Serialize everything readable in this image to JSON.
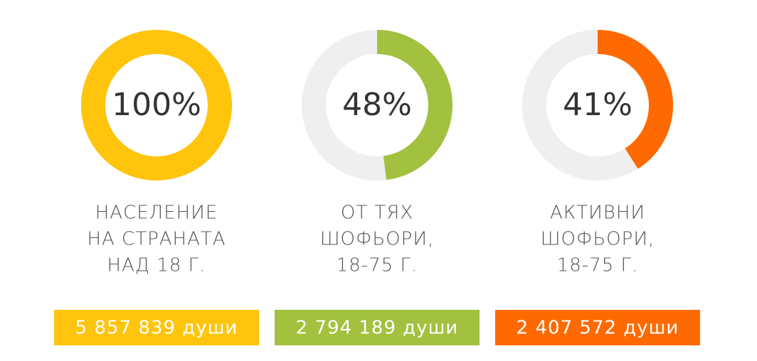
{
  "chart_data": [
    {
      "type": "donut",
      "values": [
        100
      ],
      "value_labels": [
        "100%"
      ],
      "ylim": [
        0,
        100
      ],
      "color": "#ffc40c",
      "track_color": "#efefef",
      "description": [
        "НАСЕЛЕНИЕ",
        "НА СТРАНАТА",
        "НАД 18 Г."
      ],
      "count_label": "5 857 839 души"
    },
    {
      "type": "donut",
      "values": [
        48
      ],
      "value_labels": [
        "48%"
      ],
      "ylim": [
        0,
        100
      ],
      "color": "#a2c13e",
      "track_color": "#efefef",
      "description": [
        "ОТ ТЯХ",
        "ШОФЬОРИ,",
        "18-75 Г."
      ],
      "count_label": "2 794 189 души"
    },
    {
      "type": "donut",
      "values": [
        41
      ],
      "value_labels": [
        "41%"
      ],
      "ylim": [
        0,
        100
      ],
      "color": "#ff6a00",
      "track_color": "#efefef",
      "description": [
        "АКТИВНИ",
        "ШОФЬОРИ,",
        "18-75 Г."
      ],
      "count_label": "2 407 572 души"
    }
  ]
}
